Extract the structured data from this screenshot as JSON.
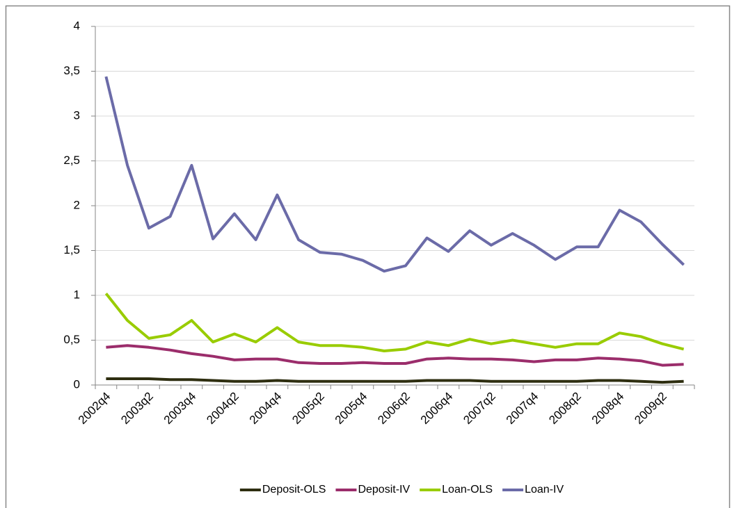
{
  "chart_data": {
    "type": "line",
    "categories": [
      "2002q4",
      null,
      "2003q2",
      null,
      "2003q4",
      null,
      "2004q2",
      null,
      "2004q4",
      null,
      "2005q2",
      null,
      "2005q4",
      null,
      "2006q2",
      null,
      "2006q4",
      null,
      "2007q2",
      null,
      "2007q4",
      null,
      "2008q2",
      null,
      "2008q4",
      null,
      "2009q2",
      null
    ],
    "series": [
      {
        "name": "Deposit-OLS",
        "color": "#2e2e10",
        "values": [
          0.07,
          0.07,
          0.07,
          0.06,
          0.06,
          0.05,
          0.04,
          0.04,
          0.05,
          0.04,
          0.04,
          0.04,
          0.04,
          0.04,
          0.04,
          0.05,
          0.05,
          0.05,
          0.04,
          0.04,
          0.04,
          0.04,
          0.04,
          0.05,
          0.05,
          0.04,
          0.03,
          0.04
        ]
      },
      {
        "name": "Deposit-IV",
        "color": "#9b2d6b",
        "values": [
          0.42,
          0.44,
          0.42,
          0.39,
          0.35,
          0.32,
          0.28,
          0.29,
          0.29,
          0.25,
          0.24,
          0.24,
          0.25,
          0.24,
          0.24,
          0.29,
          0.3,
          0.29,
          0.29,
          0.28,
          0.26,
          0.28,
          0.28,
          0.3,
          0.29,
          0.27,
          0.22,
          0.23
        ]
      },
      {
        "name": "Loan-OLS",
        "color": "#99cc00",
        "values": [
          1.02,
          0.72,
          0.52,
          0.56,
          0.72,
          0.48,
          0.57,
          0.48,
          0.64,
          0.48,
          0.44,
          0.44,
          0.42,
          0.38,
          0.4,
          0.48,
          0.44,
          0.51,
          0.46,
          0.5,
          0.46,
          0.42,
          0.46,
          0.46,
          0.58,
          0.54,
          0.46,
          0.4
        ]
      },
      {
        "name": "Loan-IV",
        "color": "#6b6ba8",
        "values": [
          3.44,
          2.45,
          1.75,
          1.88,
          2.45,
          1.63,
          1.91,
          1.62,
          2.12,
          1.62,
          1.48,
          1.46,
          1.39,
          1.27,
          1.33,
          1.64,
          1.49,
          1.72,
          1.56,
          1.69,
          1.56,
          1.4,
          1.54,
          1.54,
          1.95,
          1.82,
          1.57,
          1.34
        ]
      }
    ],
    "ylim": [
      0,
      4
    ],
    "yticks": [
      0,
      {
        "value": 0.5,
        "label": "0,5"
      },
      1,
      {
        "value": 1.5,
        "label": "1,5"
      },
      2,
      {
        "value": 2.5,
        "label": "2,5"
      },
      3,
      {
        "value": 3.5,
        "label": "3,5"
      },
      4
    ],
    "grid": true,
    "legend": "bottom"
  }
}
